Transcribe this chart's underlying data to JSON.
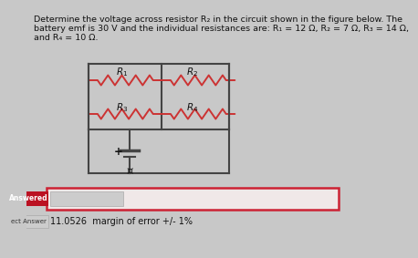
{
  "title_line1": "Determine the voltage across resistor R₂ in the circuit shown in the figure below. The",
  "title_line2": "battery emf is 30 V and the individual resistances are: R₁ = 12 Ω, R₂ = 7 Ω, R₃ = 14 Ω,",
  "title_line3": "and R₄ = 10 Ω.",
  "answer_label": "Answered",
  "correct_label": "ect Answer",
  "answer_value": "11.0526  margin of error +/- 1%",
  "bg_color": "#c8c8c8",
  "answer_box_fill": "#f0e8e8",
  "answer_box_border": "#cc2233",
  "answered_bg": "#bb1122",
  "answered_fg": "#ffffff",
  "input_box_fill": "#cccccc",
  "ect_tab_fill": "#cccccc",
  "resistor_color": "#cc3333",
  "wire_color": "#444444",
  "text_color": "#111111",
  "font_size_title": 6.8,
  "font_size_res_label": 7.5,
  "font_size_answer": 7.0,
  "font_size_bat": 8.5
}
